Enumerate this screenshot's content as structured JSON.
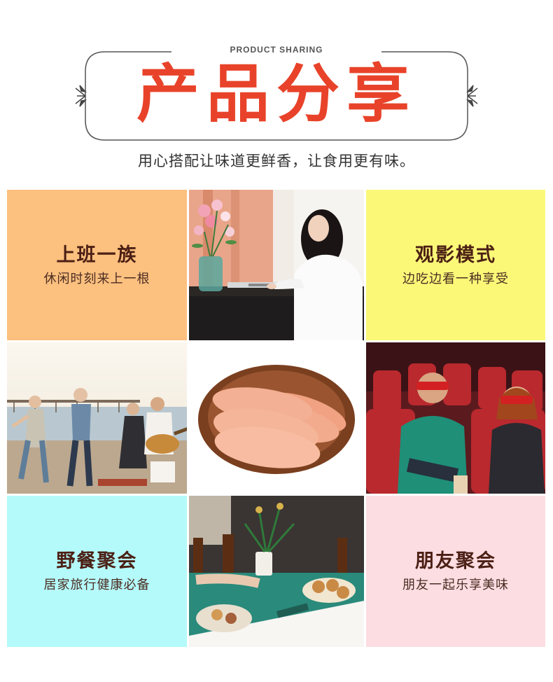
{
  "header": {
    "eyebrow": "PRODUCT SHARING",
    "title": "产品分享",
    "subtitle": "用心搭配让味道更鲜香，让食用更有味。"
  },
  "colors": {
    "title_red": "#e8432a",
    "heading_brown": "#4b1f14",
    "tile_office_bg": "#fcc07f",
    "tile_movie_bg": "#fbf878",
    "tile_picnic_bg": "#b5fafa",
    "tile_friends_bg": "#fcdde2"
  },
  "tiles": [
    {
      "heading": "上班一族",
      "caption": "休闲时刻来上一根"
    },
    {
      "heading": "观影模式",
      "caption": "边吃边看一种享受"
    },
    {
      "heading": "野餐聚会",
      "caption": "居家旅行健康必备"
    },
    {
      "heading": "朋友聚会",
      "caption": "朋友一起乐享美味"
    }
  ],
  "photos": {
    "office": "woman typing on laptop beside flower vase",
    "beach": "friends dancing on beach with guitar",
    "product": "sliced sausage on wooden plate",
    "cinema": "audience laughing wearing 3D glasses",
    "party": "party table with drinks and food"
  }
}
